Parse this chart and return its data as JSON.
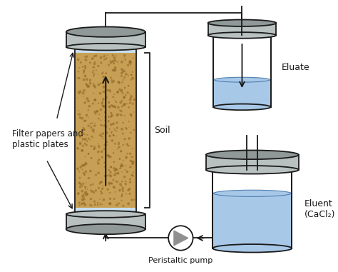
{
  "bg_color": "#ffffff",
  "soil_color": "#c8a055",
  "soil_texture_color": "#8b6020",
  "filter_color": "#c8dff0",
  "cap_color": "#b8c0c0",
  "cap_dark": "#909898",
  "cap_light": "#d0d8d8",
  "water_color": "#a8c8e8",
  "water_edge": "#5080b0",
  "line_color": "#1a1a1a",
  "labels": {
    "filter_papers": "Filter papers and\nplastic plates",
    "soil": "Soil",
    "eluate": "Eluate",
    "eluent": "Eluent\n(CaCl₂)",
    "pump": "Peristaltic pump"
  }
}
